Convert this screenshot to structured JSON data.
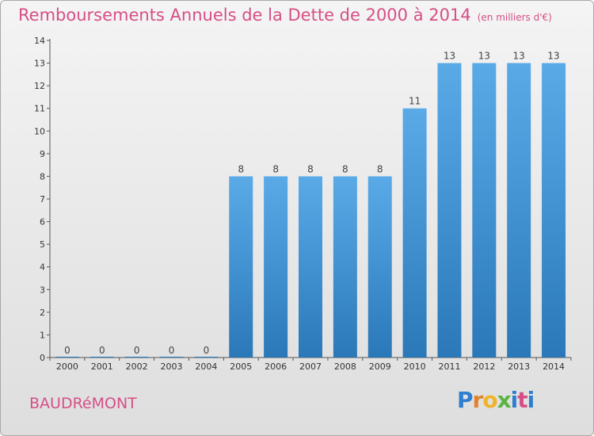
{
  "header": {
    "title": "Remboursements Annuels de la Dette de 2000 à 2014",
    "subtitle": "(en milliers d'€)"
  },
  "footer": {
    "city": "BAUDRéMONT",
    "logo": {
      "p": "P",
      "r": "r",
      "o": "o",
      "x": "x",
      "i": "i",
      "t": "t",
      "i2": "i"
    }
  },
  "chart_data": {
    "type": "bar",
    "categories": [
      "2000",
      "2001",
      "2002",
      "2003",
      "2004",
      "2005",
      "2006",
      "2007",
      "2008",
      "2009",
      "2010",
      "2011",
      "2012",
      "2013",
      "2014"
    ],
    "values": [
      0,
      0,
      0,
      0,
      0,
      8,
      8,
      8,
      8,
      8,
      11,
      13,
      13,
      13,
      13
    ],
    "ylim": [
      0,
      14
    ],
    "yticks": [
      "0",
      "1",
      "2",
      "3",
      "4",
      "5",
      "6",
      "7",
      "8",
      "9",
      "10",
      "11",
      "12",
      "13",
      "14"
    ],
    "grid": false,
    "colors": {
      "bar_light": "#5aaae8",
      "bar_dark": "#2a78b8",
      "axis": "#555555"
    }
  }
}
